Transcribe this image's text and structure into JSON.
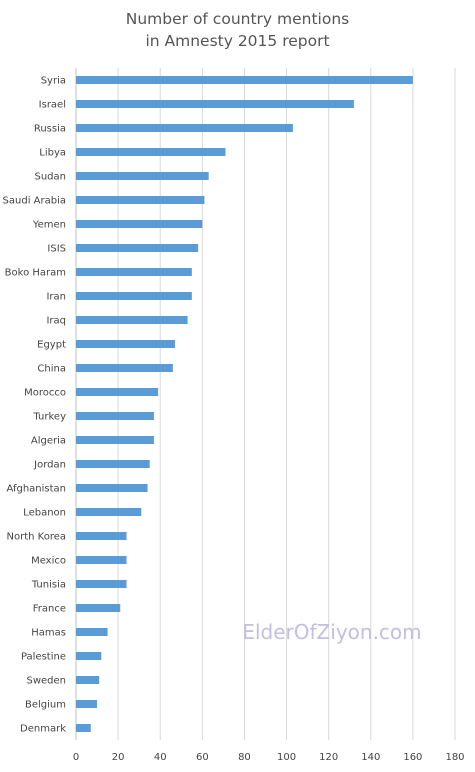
{
  "chart_data": {
    "type": "bar",
    "orientation": "horizontal",
    "title_lines": [
      "Number of country mentions",
      "in Amnesty 2015 report"
    ],
    "categories": [
      "Syria",
      "Israel",
      "Russia",
      "Libya",
      "Sudan",
      "Saudi Arabia",
      "Yemen",
      "ISIS",
      "Boko Haram",
      "Iran",
      "Iraq",
      "Egypt",
      "China",
      "Morocco",
      "Turkey",
      "Algeria",
      "Jordan",
      "Afghanistan",
      "Lebanon",
      "North Korea",
      "Mexico",
      "Tunisia",
      "France",
      "Hamas",
      "Palestine",
      "Sweden",
      "Belgium",
      "Denmark"
    ],
    "values": [
      160,
      132,
      103,
      71,
      63,
      61,
      60,
      58,
      55,
      55,
      53,
      47,
      46,
      39,
      37,
      37,
      35,
      34,
      31,
      24,
      24,
      24,
      21,
      15,
      12,
      11,
      10,
      7
    ],
    "xlim": [
      0,
      180
    ],
    "xticks": [
      0,
      20,
      40,
      60,
      80,
      100,
      120,
      140,
      160,
      180
    ],
    "grid": true,
    "bar_color": "#5b9bd5",
    "grid_color": "#d9d9d9",
    "watermark": "ElderOfZiyon.com"
  }
}
